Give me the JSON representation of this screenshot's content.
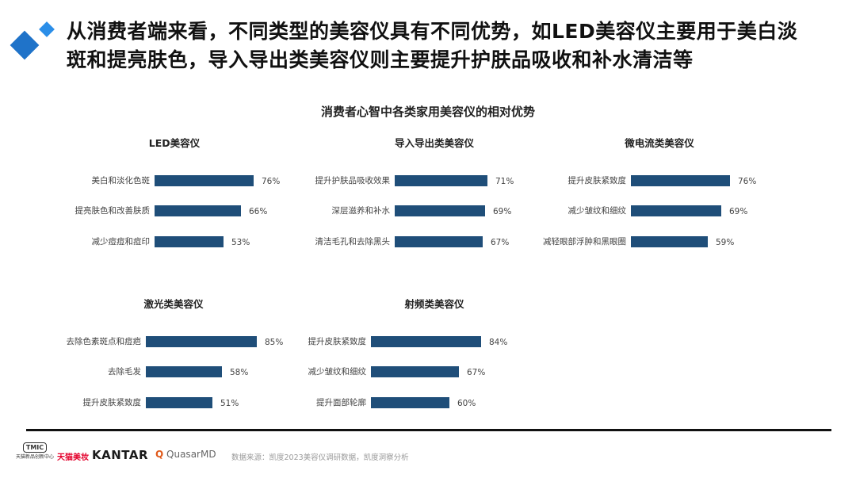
{
  "header": {
    "headline_line1": "从消费者端来看，不同类型的美容仪具有不同优势，如LED美容仪主要用于美白淡",
    "headline_line2": "斑和提亮肤色，导入导出类美容仪则主要提升护肤品吸收和补水清洁等",
    "brand_colors": {
      "blue": "#1f73c9",
      "light_blue": "#2b8ee8"
    }
  },
  "chart_subtitle": "消费者心智中各类家用美容仪的相对优势",
  "bar_color": "#1f4e79",
  "chart_data": [
    {
      "type": "bar",
      "orientation": "horizontal",
      "title": "LED美容仪",
      "categories": [
        "美白和淡化色斑",
        "提亮肤色和改善肤质",
        "减少痘痘和痘印"
      ],
      "values": [
        76,
        66,
        53
      ],
      "value_labels": [
        "76%",
        "66%",
        "53%"
      ],
      "unit": "%",
      "xlim": [
        0,
        100
      ],
      "grid": false,
      "legend": false
    },
    {
      "type": "bar",
      "orientation": "horizontal",
      "title": "导入导出类美容仪",
      "categories": [
        "提升护肤品吸收效果",
        "深层滋养和补水",
        "清洁毛孔和去除黑头"
      ],
      "values": [
        71,
        69,
        67
      ],
      "value_labels": [
        "71%",
        "69%",
        "67%"
      ],
      "unit": "%",
      "xlim": [
        0,
        100
      ],
      "grid": false,
      "legend": false
    },
    {
      "type": "bar",
      "orientation": "horizontal",
      "title": "微电流类美容仪",
      "categories": [
        "提升皮肤紧致度",
        "减少皱纹和细纹",
        "减轻眼部浮肿和黑眼圈"
      ],
      "values": [
        76,
        69,
        59
      ],
      "value_labels": [
        "76%",
        "69%",
        "59%"
      ],
      "unit": "%",
      "xlim": [
        0,
        100
      ],
      "grid": false,
      "legend": false
    },
    {
      "type": "bar",
      "orientation": "horizontal",
      "title": "激光类美容仪",
      "categories": [
        "去除色素斑点和痘疤",
        "去除毛发",
        "提升皮肤紧致度"
      ],
      "values": [
        85,
        58,
        51
      ],
      "value_labels": [
        "85%",
        "58%",
        "51%"
      ],
      "unit": "%",
      "xlim": [
        0,
        100
      ],
      "grid": false,
      "legend": false
    },
    {
      "type": "bar",
      "orientation": "horizontal",
      "title": "射频类美容仪",
      "categories": [
        "提升皮肤紧致度",
        "减少皱纹和细纹",
        "提升面部轮廓"
      ],
      "values": [
        84,
        67,
        60
      ],
      "value_labels": [
        "84%",
        "67%",
        "60%"
      ],
      "unit": "%",
      "xlim": [
        0,
        100
      ],
      "grid": false,
      "legend": false
    }
  ],
  "footer": {
    "tmic_badge": "TMIC",
    "tmic_caption": "天猫新品创新中心",
    "tmall_beauty": "天猫美妆",
    "kantar": "KANTAR",
    "quasar_icon": "Q",
    "quasar": "QuasarMD",
    "source": "数据来源：凯度2023美容仪调研数据，凯度洞察分析"
  }
}
